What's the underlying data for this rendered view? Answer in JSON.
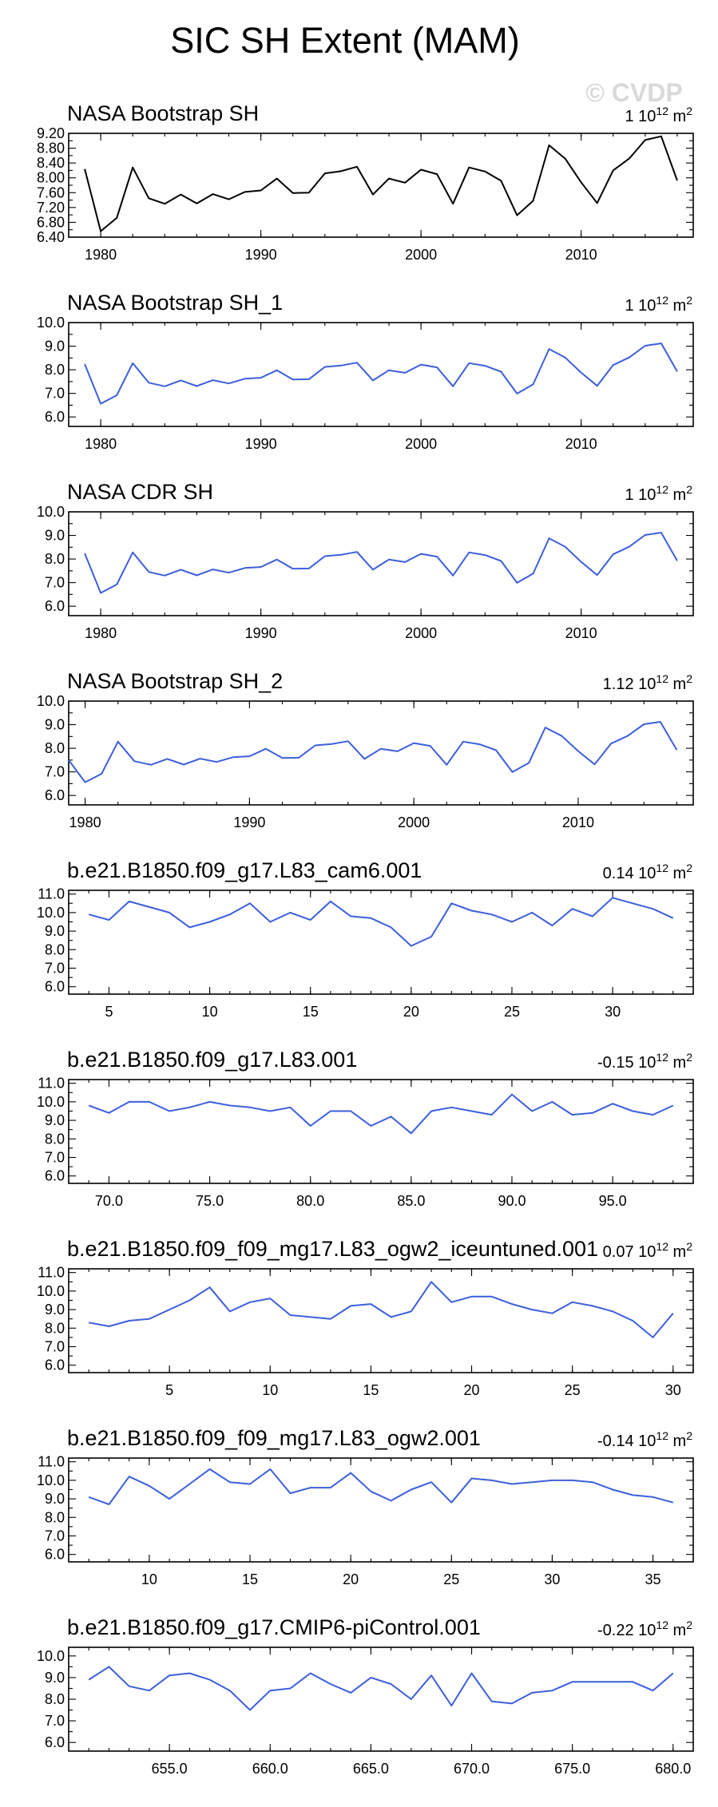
{
  "figure": {
    "title": "SIC SH Extent (MAM)",
    "watermark": "© CVDP",
    "colors": {
      "observed": "#000000",
      "model": "#3c5fdc"
    }
  },
  "chart_data": [
    {
      "type": "line",
      "title": "NASA Bootstrap SH",
      "trend_value": "1",
      "trend_units": "10",
      "trend_exp": "12",
      "trend_unit2": "m",
      "trend_exp2": "2",
      "color": "#000000",
      "x_start": 1979,
      "values": [
        8.24,
        6.56,
        6.92,
        8.28,
        7.45,
        7.3,
        7.55,
        7.31,
        7.56,
        7.42,
        7.62,
        7.66,
        7.98,
        7.59,
        7.6,
        8.12,
        8.18,
        8.3,
        7.55,
        7.98,
        7.87,
        8.22,
        8.1,
        7.3,
        8.28,
        8.17,
        7.92,
        6.99,
        7.38,
        8.88,
        8.52,
        7.88,
        7.32,
        8.2,
        8.52,
        9.02,
        9.12,
        7.93
      ],
      "xlim": [
        1978,
        2017
      ],
      "ylim": [
        6.4,
        9.2
      ],
      "yticks": [
        6.4,
        6.8,
        7.2,
        7.6,
        8.0,
        8.4,
        8.8,
        9.2
      ],
      "ytick_labels": [
        "6.40",
        "6.80",
        "7.20",
        "7.60",
        "8.00",
        "8.40",
        "8.80",
        "9.20"
      ],
      "xticks": [
        1980,
        1990,
        2000,
        2010
      ],
      "xtick_labels": [
        "1980",
        "1990",
        "2000",
        "2010"
      ]
    },
    {
      "type": "line",
      "title": "NASA Bootstrap SH_1",
      "trend_value": "1",
      "trend_units": "10",
      "trend_exp": "12",
      "trend_unit2": "m",
      "trend_exp2": "2",
      "color": "#3c5fdc",
      "x_start": 1979,
      "values": [
        8.24,
        6.56,
        6.92,
        8.28,
        7.45,
        7.3,
        7.55,
        7.31,
        7.56,
        7.42,
        7.62,
        7.66,
        7.98,
        7.59,
        7.6,
        8.12,
        8.18,
        8.3,
        7.55,
        7.98,
        7.87,
        8.22,
        8.1,
        7.3,
        8.28,
        8.17,
        7.92,
        6.99,
        7.38,
        8.88,
        8.52,
        7.88,
        7.32,
        8.2,
        8.52,
        9.02,
        9.12,
        7.93
      ],
      "xlim": [
        1978,
        2017
      ],
      "ylim": [
        5.6,
        10.0
      ],
      "yticks": [
        6.0,
        7.0,
        8.0,
        9.0,
        10.0
      ],
      "ytick_labels": [
        "6.0",
        "7.0",
        "8.0",
        "9.0",
        "10.0"
      ],
      "xticks": [
        1980,
        1990,
        2000,
        2010
      ],
      "xtick_labels": [
        "1980",
        "1990",
        "2000",
        "2010"
      ]
    },
    {
      "type": "line",
      "title": "NASA CDR SH",
      "trend_value": "1",
      "trend_units": "10",
      "trend_exp": "12",
      "trend_unit2": "m",
      "trend_exp2": "2",
      "color": "#3c5fdc",
      "x_start": 1979,
      "values": [
        8.24,
        6.56,
        6.92,
        8.28,
        7.45,
        7.3,
        7.55,
        7.31,
        7.56,
        7.42,
        7.62,
        7.66,
        7.98,
        7.59,
        7.6,
        8.12,
        8.18,
        8.3,
        7.55,
        7.98,
        7.87,
        8.22,
        8.1,
        7.3,
        8.28,
        8.17,
        7.92,
        6.99,
        7.38,
        8.88,
        8.52,
        7.88,
        7.32,
        8.2,
        8.52,
        9.02,
        9.12,
        7.93
      ],
      "xlim": [
        1978,
        2017
      ],
      "ylim": [
        5.6,
        10.0
      ],
      "yticks": [
        6.0,
        7.0,
        8.0,
        9.0,
        10.0
      ],
      "ytick_labels": [
        "6.0",
        "7.0",
        "8.0",
        "9.0",
        "10.0"
      ],
      "xticks": [
        1980,
        1990,
        2000,
        2010
      ],
      "xtick_labels": [
        "1980",
        "1990",
        "2000",
        "2010"
      ]
    },
    {
      "type": "line",
      "title": "NASA Bootstrap SH_2",
      "trend_value": "1.12",
      "trend_units": "10",
      "trend_exp": "12",
      "trend_unit2": "m",
      "trend_exp2": "2",
      "color": "#3c5fdc",
      "x_start": 1979,
      "values": [
        7.5,
        6.56,
        6.92,
        8.28,
        7.45,
        7.3,
        7.55,
        7.31,
        7.56,
        7.42,
        7.62,
        7.66,
        7.98,
        7.59,
        7.6,
        8.12,
        8.18,
        8.3,
        7.55,
        7.98,
        7.87,
        8.22,
        8.1,
        7.3,
        8.28,
        8.17,
        7.92,
        6.99,
        7.38,
        8.88,
        8.52,
        7.88,
        7.32,
        8.2,
        8.52,
        9.02,
        9.12,
        7.93
      ],
      "xlim": [
        1979,
        2017
      ],
      "ylim": [
        5.6,
        10.0
      ],
      "yticks": [
        6.0,
        7.0,
        8.0,
        9.0,
        10.0
      ],
      "ytick_labels": [
        "6.0",
        "7.0",
        "8.0",
        "9.0",
        "10.0"
      ],
      "xticks": [
        1980,
        1990,
        2000,
        2010
      ],
      "xtick_labels": [
        "1980",
        "1990",
        "2000",
        "2010"
      ]
    },
    {
      "type": "line",
      "title": "b.e21.B1850.f09_g17.L83_cam6.001",
      "trend_value": "0.14",
      "trend_units": "10",
      "trend_exp": "12",
      "trend_unit2": "m",
      "trend_exp2": "2",
      "color": "#3c5fdc",
      "x_start": 4,
      "values": [
        9.9,
        9.6,
        10.6,
        10.3,
        10.0,
        9.2,
        9.5,
        9.9,
        10.5,
        9.5,
        10.0,
        9.6,
        10.6,
        9.8,
        9.7,
        9.2,
        8.2,
        8.7,
        10.5,
        10.1,
        9.9,
        9.5,
        10.0,
        9.3,
        10.2,
        9.8,
        10.8,
        10.5,
        10.2,
        9.7
      ],
      "xlim": [
        3,
        34
      ],
      "ylim": [
        5.6,
        11.2
      ],
      "yticks": [
        6.0,
        7.0,
        8.0,
        9.0,
        10.0,
        11.0
      ],
      "ytick_labels": [
        "6.0",
        "7.0",
        "8.0",
        "9.0",
        "10.0",
        "11.0"
      ],
      "xticks": [
        5,
        10,
        15,
        20,
        25,
        30
      ],
      "xtick_labels": [
        "5",
        "10",
        "15",
        "20",
        "25",
        "30"
      ]
    },
    {
      "type": "line",
      "title": "b.e21.B1850.f09_g17.L83.001",
      "trend_value": "-0.15",
      "trend_units": "10",
      "trend_exp": "12",
      "trend_unit2": "m",
      "trend_exp2": "2",
      "color": "#3c5fdc",
      "x_start": 69,
      "values": [
        9.8,
        9.4,
        10.0,
        10.0,
        9.5,
        9.7,
        10.0,
        9.8,
        9.7,
        9.5,
        9.7,
        8.7,
        9.5,
        9.5,
        8.7,
        9.2,
        8.3,
        9.5,
        9.7,
        9.5,
        9.3,
        10.4,
        9.5,
        10.0,
        9.3,
        9.4,
        9.9,
        9.5,
        9.3,
        9.8
      ],
      "xlim": [
        68,
        99
      ],
      "ylim": [
        5.6,
        11.2
      ],
      "yticks": [
        6.0,
        7.0,
        8.0,
        9.0,
        10.0,
        11.0
      ],
      "ytick_labels": [
        "6.0",
        "7.0",
        "8.0",
        "9.0",
        "10.0",
        "11.0"
      ],
      "xticks": [
        70,
        75,
        80,
        85,
        90,
        95
      ],
      "xtick_labels": [
        "70.0",
        "75.0",
        "80.0",
        "85.0",
        "90.0",
        "95.0"
      ]
    },
    {
      "type": "line",
      "title": "b.e21.B1850.f09_f09_mg17.L83_ogw2_iceuntuned.001",
      "trend_value": "0.07",
      "trend_units": "10",
      "trend_exp": "12",
      "trend_unit2": "m",
      "trend_exp2": "2",
      "color": "#3c5fdc",
      "x_start": 1,
      "values": [
        8.3,
        8.1,
        8.4,
        8.5,
        9.0,
        9.5,
        10.2,
        8.9,
        9.4,
        9.6,
        8.7,
        8.6,
        8.5,
        9.2,
        9.3,
        8.6,
        8.9,
        10.5,
        9.4,
        9.7,
        9.7,
        9.3,
        9.0,
        8.8,
        9.4,
        9.2,
        8.9,
        8.4,
        7.5,
        8.8
      ],
      "xlim": [
        0,
        31
      ],
      "ylim": [
        5.6,
        11.2
      ],
      "yticks": [
        6.0,
        7.0,
        8.0,
        9.0,
        10.0,
        11.0
      ],
      "ytick_labels": [
        "6.0",
        "7.0",
        "8.0",
        "9.0",
        "10.0",
        "11.0"
      ],
      "xticks": [
        5,
        10,
        15,
        20,
        25,
        30
      ],
      "xtick_labels": [
        "5",
        "10",
        "15",
        "20",
        "25",
        "30"
      ]
    },
    {
      "type": "line",
      "title": "b.e21.B1850.f09_f09_mg17.L83_ogw2.001",
      "trend_value": "-0.14",
      "trend_units": "10",
      "trend_exp": "12",
      "trend_unit2": "m",
      "trend_exp2": "2",
      "color": "#3c5fdc",
      "x_start": 7,
      "values": [
        9.1,
        8.7,
        10.2,
        9.7,
        9.0,
        9.8,
        10.6,
        9.9,
        9.8,
        10.6,
        9.3,
        9.6,
        9.6,
        10.4,
        9.4,
        8.9,
        9.5,
        9.9,
        8.8,
        10.1,
        10.0,
        9.8,
        9.9,
        10.0,
        10.0,
        9.9,
        9.5,
        9.2,
        9.1,
        8.8
      ],
      "xlim": [
        6,
        37
      ],
      "ylim": [
        5.6,
        11.2
      ],
      "yticks": [
        6.0,
        7.0,
        8.0,
        9.0,
        10.0,
        11.0
      ],
      "ytick_labels": [
        "6.0",
        "7.0",
        "8.0",
        "9.0",
        "10.0",
        "11.0"
      ],
      "xticks": [
        10,
        15,
        20,
        25,
        30,
        35
      ],
      "xtick_labels": [
        "10",
        "15",
        "20",
        "25",
        "30",
        "35"
      ]
    },
    {
      "type": "line",
      "title": "b.e21.B1850.f09_g17.CMIP6-piControl.001",
      "trend_value": "-0.22",
      "trend_units": "10",
      "trend_exp": "12",
      "trend_unit2": "m",
      "trend_exp2": "2",
      "color": "#3c5fdc",
      "x_start": 651,
      "values": [
        8.9,
        9.5,
        8.6,
        8.4,
        9.1,
        9.2,
        8.9,
        8.4,
        7.5,
        8.4,
        8.5,
        9.2,
        8.7,
        8.3,
        9.0,
        8.7,
        8.0,
        9.1,
        7.7,
        9.2,
        7.9,
        7.8,
        8.3,
        8.4,
        8.8,
        8.8,
        8.8,
        8.8,
        8.4,
        9.2
      ],
      "xlim": [
        650,
        681
      ],
      "ylim": [
        5.6,
        10.4
      ],
      "yticks": [
        6.0,
        7.0,
        8.0,
        9.0,
        10.0
      ],
      "ytick_labels": [
        "6.0",
        "7.0",
        "8.0",
        "9.0",
        "10.0"
      ],
      "xticks": [
        655,
        660,
        665,
        670,
        675,
        680
      ],
      "xtick_labels": [
        "655.0",
        "660.0",
        "665.0",
        "670.0",
        "675.0",
        "680.0"
      ]
    }
  ]
}
